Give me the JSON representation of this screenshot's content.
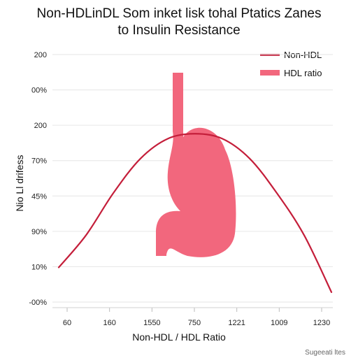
{
  "chart_data": {
    "type": "line",
    "title_line1": "Non-HDLinDL Som inket lisk tohal Ptatics Zanes",
    "title_line2": "to Insulin Resistance",
    "xlabel": "Non-HDL / HDL Ratio",
    "ylabel": "Nio Ll drifess",
    "x_tick_labels": [
      "60",
      "160",
      "1550",
      "750",
      "1221",
      "1009",
      "1230"
    ],
    "y_tick_labels": [
      "200",
      "00%",
      "200",
      "70%",
      "45%",
      "90%",
      "10%",
      "-00%"
    ],
    "legend": [
      {
        "label": "Non-HDL",
        "style": "line",
        "color": "#c41e3a"
      },
      {
        "label": "HDL ratio",
        "style": "band",
        "color": "#f2677d"
      }
    ],
    "legend_position": "top-right",
    "grid": true,
    "series": [
      {
        "name": "Non-HDL",
        "color": "#c41e3a",
        "points": [
          [
            0.0,
            0.14
          ],
          [
            0.1,
            0.27
          ],
          [
            0.2,
            0.44
          ],
          [
            0.3,
            0.58
          ],
          [
            0.4,
            0.66
          ],
          [
            0.5,
            0.68
          ],
          [
            0.6,
            0.66
          ],
          [
            0.7,
            0.58
          ],
          [
            0.8,
            0.44
          ],
          [
            0.9,
            0.27
          ],
          [
            1.0,
            0.04
          ]
        ]
      }
    ]
  },
  "watermark": "Sugeeati ltes"
}
